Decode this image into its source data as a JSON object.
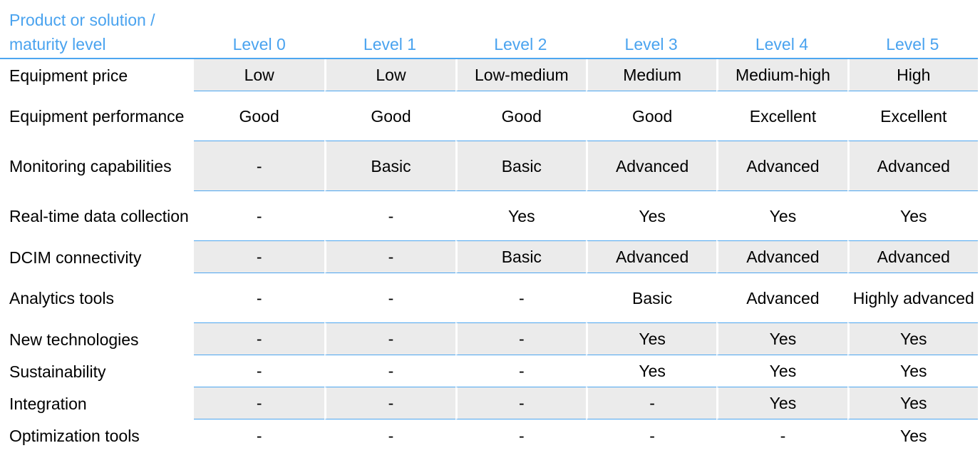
{
  "header": {
    "first": "Product or solution / maturity level",
    "levels": [
      "Level 0",
      "Level 1",
      "Level 2",
      "Level 3",
      "Level 4",
      "Level 5"
    ]
  },
  "rows": [
    {
      "label": "Equipment price",
      "values": [
        "Low",
        "Low",
        "Low-medium",
        "Medium",
        "Medium-high",
        "High"
      ]
    },
    {
      "label": "Equipment performance",
      "values": [
        "Good",
        "Good",
        "Good",
        "Good",
        "Excellent",
        "Excellent"
      ]
    },
    {
      "label": "Monitoring capabilities",
      "values": [
        "-",
        "Basic",
        "Basic",
        "Advanced",
        "Advanced",
        "Advanced"
      ]
    },
    {
      "label": "Real-time data collection",
      "values": [
        "-",
        "-",
        "Yes",
        "Yes",
        "Yes",
        "Yes"
      ]
    },
    {
      "label": "DCIM connectivity",
      "values": [
        "-",
        "-",
        "Basic",
        "Advanced",
        "Advanced",
        "Advanced"
      ]
    },
    {
      "label": "Analytics tools",
      "values": [
        "-",
        "-",
        "-",
        "Basic",
        "Advanced",
        "Highly advanced"
      ]
    },
    {
      "label": "New technologies",
      "values": [
        "-",
        "-",
        "-",
        "Yes",
        "Yes",
        "Yes"
      ]
    },
    {
      "label": "Sustainability",
      "values": [
        "-",
        "-",
        "-",
        "Yes",
        "Yes",
        "Yes"
      ]
    },
    {
      "label": "Integration",
      "values": [
        "-",
        "-",
        "-",
        "-",
        "Yes",
        "Yes"
      ]
    },
    {
      "label": "Optimization tools",
      "values": [
        "-",
        "-",
        "-",
        "-",
        "-",
        "Yes"
      ]
    }
  ],
  "colors": {
    "accent": "#4aa3ef",
    "shade": "#ebebeb"
  }
}
